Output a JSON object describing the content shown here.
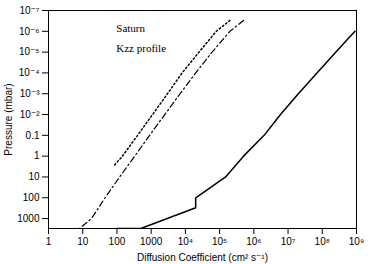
{
  "chart_data": {
    "type": "line",
    "xlabel": "Diffusion Coefficient (cm² s⁻¹)",
    "ylabel": "Pressure (mbar)",
    "annotations": [
      "Saturn",
      "Kzz profile"
    ],
    "log": true,
    "grid": false,
    "xlim": [
      1,
      1000000000.0
    ],
    "ylim": [
      3000,
      1e-07
    ],
    "xticks": [
      1,
      10,
      100,
      1000,
      {
        "value": 10000,
        "label": "10⁴"
      },
      {
        "value": 100000,
        "label": "10⁵"
      },
      {
        "value": 1000000,
        "label": "10⁶"
      },
      {
        "value": 10000000,
        "label": "10⁷"
      },
      {
        "value": 100000000,
        "label": "10⁸"
      },
      {
        "value": 1000000000,
        "label": "10⁹"
      }
    ],
    "yticks": [
      {
        "value": 1e-07,
        "label": "10⁻⁷"
      },
      {
        "value": 1e-06,
        "label": "10⁻⁶"
      },
      {
        "value": 1e-05,
        "label": "10⁻⁵"
      },
      {
        "value": 0.0001,
        "label": "10⁻⁴"
      },
      {
        "value": 0.001,
        "label": "10⁻³"
      },
      {
        "value": 0.01,
        "label": "10⁻²"
      },
      0.1,
      1,
      10,
      100,
      1000
    ],
    "series": [
      {
        "color": "#000000",
        "line_style": "dotted",
        "x": [
          200000.0,
          80000.0,
          25000.0,
          8000.0,
          3000.0,
          1100.0,
          400,
          145,
          80
        ],
        "values": [
          3e-07,
          1e-06,
          1e-05,
          0.0001,
          0.001,
          0.01,
          0.1,
          1,
          3
        ]
      },
      {
        "color": "#000000",
        "line_style": "dashdot",
        "x": [
          500000.0,
          200000.0,
          60000.0,
          20000.0,
          7000.0,
          2500.0,
          900,
          330,
          120,
          45,
          18,
          8
        ],
        "values": [
          3e-07,
          1e-06,
          1e-05,
          0.0001,
          0.001,
          0.01,
          0.1,
          1,
          10,
          100,
          1000,
          3000
        ]
      },
      {
        "color": "#000000",
        "line_style": "solid",
        "x": [
          900000000.0,
          250000000.0,
          70000000.0,
          20000000.0,
          6000000.0,
          2000000.0,
          500000.0,
          150000.0,
          20000.0,
          20000.0,
          500,
          100
        ],
        "values": [
          1e-06,
          1e-05,
          0.0001,
          0.001,
          0.01,
          0.1,
          1,
          10,
          100,
          300,
          3000,
          3000
        ]
      }
    ]
  }
}
